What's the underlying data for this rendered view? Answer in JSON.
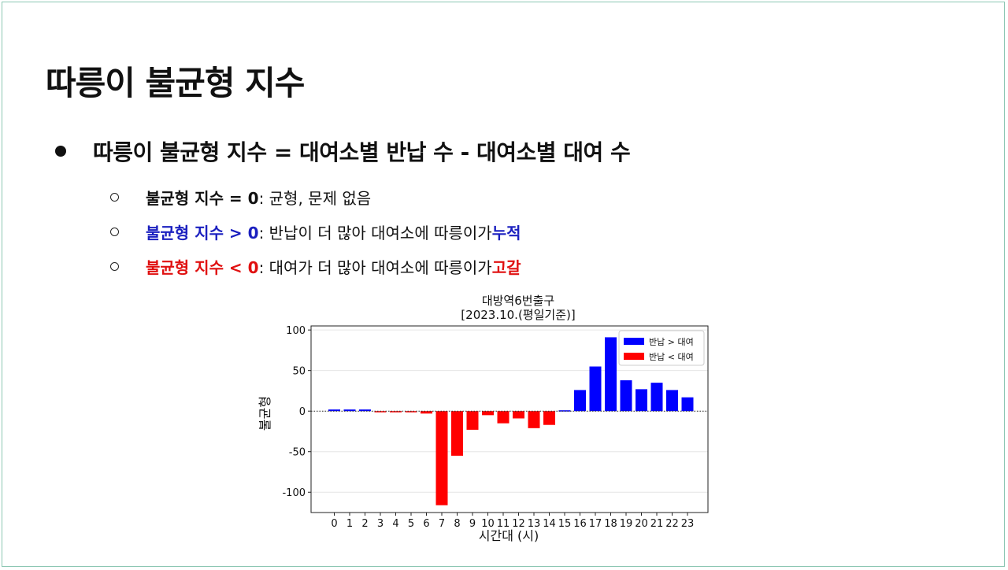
{
  "slide": {
    "title": "따릉이 불균형 지수",
    "main_bullet": "따릉이 불균형 지수 = 대여소별 반납 수 - 대여소별 대여 수",
    "sub_bullets": [
      {
        "key": "불균형 지수 = 0",
        "desc": ": 균형, 문제 없음",
        "tail": ""
      },
      {
        "key": "불균형 지수 > 0",
        "desc": ": 반납이 더 많아 대여소에 따릉이가 ",
        "tail": "누적"
      },
      {
        "key": "불균형 지수 < 0",
        "desc": ": 대여가 더 많아 대여소에 따릉이가 ",
        "tail": "고갈"
      }
    ]
  },
  "colors": {
    "positive": "#0000ff",
    "negative": "#ff0000",
    "blue_text": "#1a1fbf",
    "red_text": "#e01010"
  },
  "chart_data": {
    "type": "bar",
    "title": "대방역6번출구",
    "subtitle": "[2023.10.(평일기준)]",
    "xlabel": "시간대 (시)",
    "ylabel": "불균형",
    "categories": [
      "0",
      "1",
      "2",
      "3",
      "4",
      "5",
      "6",
      "7",
      "8",
      "9",
      "10",
      "11",
      "12",
      "13",
      "14",
      "15",
      "16",
      "17",
      "18",
      "19",
      "20",
      "21",
      "22",
      "23"
    ],
    "values": [
      2,
      2,
      2,
      -1,
      -1,
      -1,
      -3,
      -116,
      -55,
      -23,
      -5,
      -15,
      -9,
      -21,
      -17,
      1,
      26,
      55,
      91,
      38,
      27,
      35,
      26,
      17
    ],
    "ylim": [
      -125,
      105
    ],
    "yticks": [
      100,
      50,
      0,
      -50,
      -100
    ],
    "legend": [
      {
        "label": "반납 > 대여",
        "color": "#0000ff"
      },
      {
        "label": "반납 < 대여",
        "color": "#ff0000"
      }
    ],
    "legend_position": "top-right",
    "zero_line": "dotted",
    "grid": "horizontal-light"
  }
}
